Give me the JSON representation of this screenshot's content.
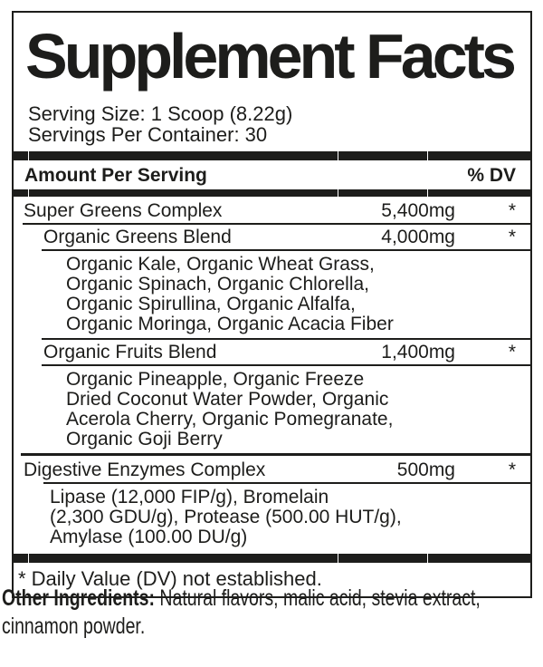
{
  "label": {
    "title": "Supplement Facts",
    "serving_size": "Serving Size: 1 Scoop (8.22g)",
    "servings_per_container": "Servings Per Container: 30",
    "header": {
      "amount_per_serving": "Amount Per Serving",
      "percent_dv": "% DV"
    },
    "rows": [
      {
        "name": "Super Greens Complex",
        "amount": "5,400mg",
        "dv": "*"
      },
      {
        "name": "Organic Greens Blend",
        "amount": "4,000mg",
        "dv": "*"
      },
      {
        "text": "Organic Kale, Organic Wheat Grass,\nOrganic Spinach, Organic Chlorella,\nOrganic Spirullina, Organic Alfalfa,\nOrganic Moringa, Organic Acacia Fiber"
      },
      {
        "name": "Organic Fruits Blend",
        "amount": "1,400mg",
        "dv": "*"
      },
      {
        "text": "Organic Pineapple, Organic Freeze\nDried Coconut Water Powder, Organic\nAcerola Cherry, Organic Pomegranate,\nOrganic Goji Berry"
      },
      {
        "name": "Digestive Enzymes Complex",
        "amount": "500mg",
        "dv": "*"
      },
      {
        "text": "Lipase (12,000 FIP/g), Bromelain\n(2,300 GDU/g), Protease (500.00 HUT/g),\nAmylase (100.00 DU/g)"
      }
    ],
    "footnote": "* Daily Value (DV) not established."
  },
  "other_ingredients": {
    "label": "Other Ingredients:",
    "text": " Natural flavors, malic acid, stevia extract, cinnamon powder."
  },
  "colors": {
    "ink": "#1d1d1b",
    "background": "#ffffff"
  }
}
